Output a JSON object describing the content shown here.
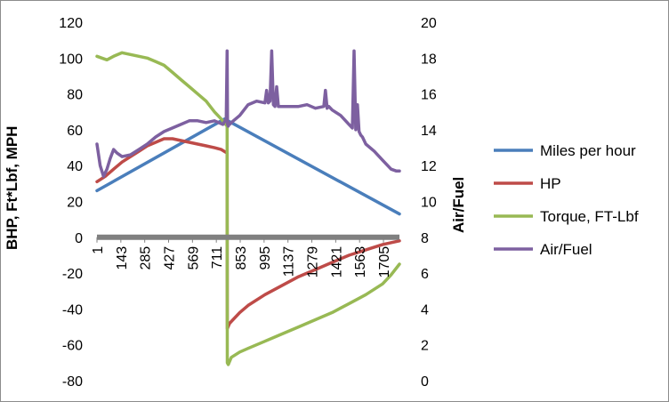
{
  "chart_data": {
    "type": "line",
    "title": "",
    "xlabel": "",
    "ylabel": "BHP, Ft*Lbf, MPH",
    "y2label": "Air/Fuel",
    "xlim": [
      1,
      1800
    ],
    "ylim": [
      -80,
      120
    ],
    "y2lim": [
      0,
      20
    ],
    "xticks": [
      1,
      143,
      285,
      427,
      569,
      711,
      853,
      995,
      1137,
      1279,
      1421,
      1563,
      1705
    ],
    "yticks": [
      -80,
      -60,
      -40,
      -20,
      0,
      20,
      40,
      60,
      80,
      100,
      120
    ],
    "y2ticks": [
      0,
      2,
      4,
      6,
      8,
      10,
      12,
      14,
      16,
      18,
      20
    ],
    "grid": false,
    "legend_position": "right",
    "zero_line_color": "#808080",
    "series": [
      {
        "name": "Miles per hour",
        "axis": "left",
        "color": "#4a7ebb",
        "x": [
          1,
          760,
          1800
        ],
        "values": [
          26,
          66,
          13
        ]
      },
      {
        "name": "HP",
        "axis": "left",
        "color": "#be4b48",
        "x": [
          1,
          50,
          100,
          150,
          200,
          250,
          300,
          350,
          400,
          450,
          500,
          550,
          600,
          650,
          700,
          740,
          775,
          776,
          790,
          850,
          900,
          1000,
          1100,
          1200,
          1300,
          1400,
          1500,
          1600,
          1700,
          1800
        ],
        "values": [
          31,
          34,
          38,
          42,
          45,
          48,
          51,
          53,
          55,
          55,
          54,
          53,
          52,
          51,
          50,
          49,
          47,
          -51,
          -48,
          -42,
          -38,
          -32,
          -27,
          -22,
          -18,
          -14,
          -10,
          -7,
          -4,
          -2
        ]
      },
      {
        "name": "Torque, FT-Lbf",
        "axis": "left",
        "color": "#98b954",
        "x": [
          1,
          30,
          60,
          100,
          150,
          200,
          250,
          300,
          350,
          400,
          450,
          500,
          550,
          600,
          650,
          700,
          740,
          775,
          776,
          782,
          800,
          850,
          900,
          1000,
          1100,
          1200,
          1300,
          1400,
          1500,
          1600,
          1700,
          1750,
          1800
        ],
        "values": [
          101,
          100,
          99,
          101,
          103,
          102,
          101,
          100,
          98,
          96,
          92,
          88,
          84,
          80,
          76,
          70,
          66,
          62,
          -70,
          -71,
          -67,
          -64,
          -62,
          -58,
          -54,
          -50,
          -46,
          -42,
          -37,
          -32,
          -26,
          -21,
          -15
        ]
      },
      {
        "name": "Air/Fuel",
        "axis": "right",
        "color": "#7d60a0",
        "x": [
          1,
          20,
          40,
          60,
          80,
          100,
          120,
          150,
          200,
          250,
          300,
          350,
          400,
          450,
          500,
          550,
          600,
          650,
          700,
          750,
          770,
          775,
          778,
          782,
          786,
          790,
          800,
          850,
          900,
          950,
          1000,
          1010,
          1020,
          1030,
          1040,
          1050,
          1060,
          1070,
          1080,
          1090,
          1100,
          1150,
          1200,
          1250,
          1300,
          1350,
          1360,
          1370,
          1380,
          1400,
          1450,
          1500,
          1520,
          1530,
          1540,
          1550,
          1560,
          1570,
          1580,
          1600,
          1650,
          1700,
          1750,
          1780,
          1800
        ],
        "values": [
          13.2,
          12.0,
          11.4,
          11.8,
          12.4,
          12.9,
          12.7,
          12.5,
          12.6,
          12.9,
          13.2,
          13.6,
          13.9,
          14.1,
          14.3,
          14.5,
          14.5,
          14.4,
          14.5,
          14.3,
          14.6,
          18.4,
          14.3,
          14.2,
          14.4,
          14.3,
          14.4,
          14.8,
          15.4,
          15.6,
          15.5,
          16.2,
          15.5,
          15.6,
          18.4,
          15.4,
          15.3,
          16.4,
          15.3,
          15.3,
          15.3,
          15.3,
          15.3,
          15.4,
          15.2,
          15.3,
          16.2,
          15.2,
          15.3,
          15.1,
          14.8,
          14.3,
          14.1,
          18.4,
          14.0,
          15.4,
          13.9,
          13.7,
          13.6,
          13.2,
          12.8,
          12.3,
          11.8,
          11.7,
          11.7
        ]
      }
    ]
  }
}
